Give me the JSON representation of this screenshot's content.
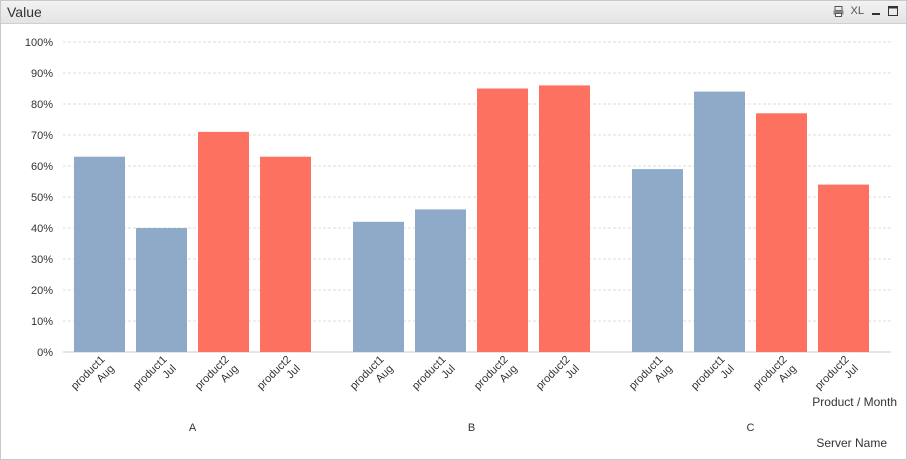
{
  "window": {
    "title": "Value",
    "tools": [
      {
        "name": "print-icon"
      },
      {
        "name": "excel-export",
        "label": "XL"
      },
      {
        "name": "minimize-icon"
      },
      {
        "name": "maximize-icon"
      }
    ]
  },
  "colors": {
    "product1": "#8eaac8",
    "product2": "#fc7160",
    "grid": "#dddddd",
    "axis": "#cccccc",
    "text": "#333333"
  },
  "chart_data": {
    "type": "bar",
    "ylim": [
      0,
      100
    ],
    "yticks": [
      "0%",
      "10%",
      "20%",
      "30%",
      "40%",
      "50%",
      "60%",
      "70%",
      "80%",
      "90%",
      "100%"
    ],
    "dimension_labels": {
      "inner": "Product / Month",
      "outer": "Server Name"
    },
    "groups": [
      {
        "name": "A",
        "bars": [
          {
            "product": "product1",
            "month": "Aug",
            "value": 63
          },
          {
            "product": "product1",
            "month": "Jul",
            "value": 40
          },
          {
            "product": "product2",
            "month": "Aug",
            "value": 71
          },
          {
            "product": "product2",
            "month": "Jul",
            "value": 63
          }
        ]
      },
      {
        "name": "B",
        "bars": [
          {
            "product": "product1",
            "month": "Aug",
            "value": 42
          },
          {
            "product": "product1",
            "month": "Jul",
            "value": 46
          },
          {
            "product": "product2",
            "month": "Aug",
            "value": 85
          },
          {
            "product": "product2",
            "month": "Jul",
            "value": 86
          }
        ]
      },
      {
        "name": "C",
        "bars": [
          {
            "product": "product1",
            "month": "Aug",
            "value": 59
          },
          {
            "product": "product1",
            "month": "Jul",
            "value": 84
          },
          {
            "product": "product2",
            "month": "Aug",
            "value": 77
          },
          {
            "product": "product2",
            "month": "Jul",
            "value": 54
          }
        ]
      }
    ]
  }
}
